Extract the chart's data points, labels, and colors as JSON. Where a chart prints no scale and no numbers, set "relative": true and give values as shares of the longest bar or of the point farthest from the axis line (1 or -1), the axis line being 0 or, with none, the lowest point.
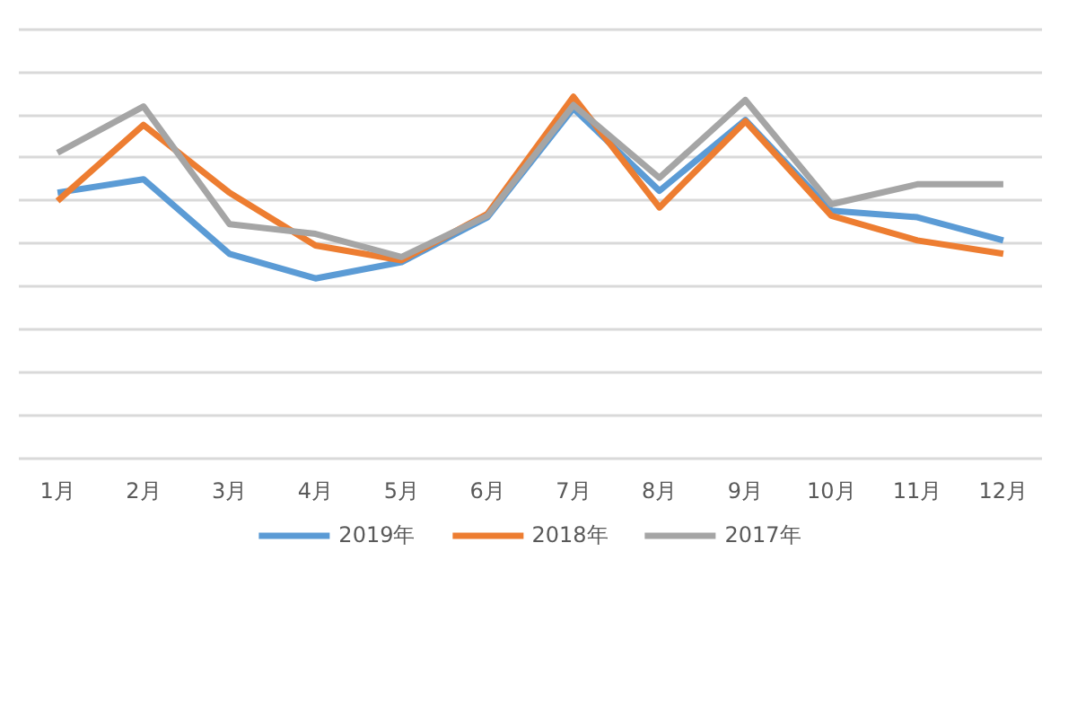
{
  "chart_data": {
    "type": "line",
    "relative": true,
    "grid": "y",
    "legend": "bottom",
    "marker": "none",
    "line_style": "solid",
    "categories": [
      "1月",
      "2月",
      "3月",
      "4月",
      "5月",
      "6月",
      "7月",
      "8月",
      "9月",
      "10月",
      "11月",
      "12月"
    ],
    "series": [
      {
        "name": "2019年",
        "color": "#5b9bd5",
        "values": [
          0.735,
          0.772,
          0.566,
          0.498,
          0.543,
          0.667,
          0.968,
          0.74,
          0.936,
          0.685,
          0.667,
          0.603
        ]
      },
      {
        "name": "2018年",
        "color": "#ed7d31",
        "values": [
          0.712,
          0.922,
          0.735,
          0.589,
          0.548,
          0.676,
          1.0,
          0.694,
          0.932,
          0.671,
          0.603,
          0.566
        ]
      },
      {
        "name": "2017年",
        "color": "#a5a5a5",
        "values": [
          0.845,
          0.973,
          0.648,
          0.621,
          0.557,
          0.671,
          0.977,
          0.776,
          0.991,
          0.703,
          0.758,
          0.758
        ]
      }
    ]
  }
}
